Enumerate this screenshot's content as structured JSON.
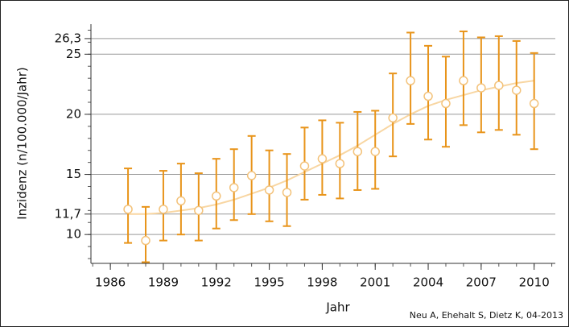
{
  "chart_data": {
    "type": "errorbar",
    "xlabel": "Jahr",
    "ylabel": "Inzidenz (n/100.000/Jahr)",
    "credit": "Neu A, Ehehalt S, Dietz K, 04-2013",
    "x": [
      1987,
      1988,
      1989,
      1990,
      1991,
      1992,
      1993,
      1994,
      1995,
      1996,
      1997,
      1998,
      1999,
      2000,
      2001,
      2002,
      2003,
      2004,
      2005,
      2006,
      2007,
      2008,
      2009,
      2010
    ],
    "values": [
      12.1,
      9.5,
      12.1,
      12.8,
      12.0,
      13.2,
      13.9,
      14.9,
      13.7,
      13.5,
      15.7,
      16.3,
      15.9,
      16.9,
      16.9,
      19.7,
      22.8,
      21.5,
      20.9,
      22.8,
      22.2,
      22.4,
      22.0,
      20.9
    ],
    "low": [
      9.3,
      7.7,
      9.5,
      10.0,
      9.5,
      10.5,
      11.2,
      11.7,
      11.1,
      10.7,
      12.9,
      13.3,
      13.0,
      13.7,
      13.8,
      16.5,
      19.2,
      17.9,
      17.3,
      19.1,
      18.5,
      18.7,
      18.3,
      17.1
    ],
    "high": [
      15.5,
      12.3,
      15.3,
      15.9,
      15.1,
      16.3,
      17.1,
      18.2,
      17.0,
      16.7,
      18.9,
      19.5,
      19.3,
      20.2,
      20.3,
      23.4,
      26.8,
      25.7,
      24.8,
      26.9,
      26.4,
      26.5,
      26.1,
      25.1
    ],
    "color": "#e8941a",
    "marker_color": "#f3c27a",
    "trend": {
      "color": "#f8d6a2",
      "values": [
        11.7,
        11.7,
        11.8,
        12.0,
        12.2,
        12.5,
        12.9,
        13.4,
        13.9,
        14.5,
        15.2,
        15.9,
        16.6,
        17.4,
        18.3,
        19.2,
        20.0,
        20.7,
        21.2,
        21.6,
        22.0,
        22.3,
        22.6,
        22.8
      ]
    },
    "xlim": [
      1984.9,
      2011.2
    ],
    "xticks": [
      1986,
      1989,
      1992,
      1995,
      1998,
      2001,
      2004,
      2007,
      2010
    ],
    "ylim": [
      7.6,
      27.5
    ],
    "yticks": [
      10,
      {
        "value": 11.7,
        "label": "11,7"
      },
      15,
      20,
      25,
      {
        "value": 26.3,
        "label": "26,3"
      }
    ],
    "grid": true
  }
}
